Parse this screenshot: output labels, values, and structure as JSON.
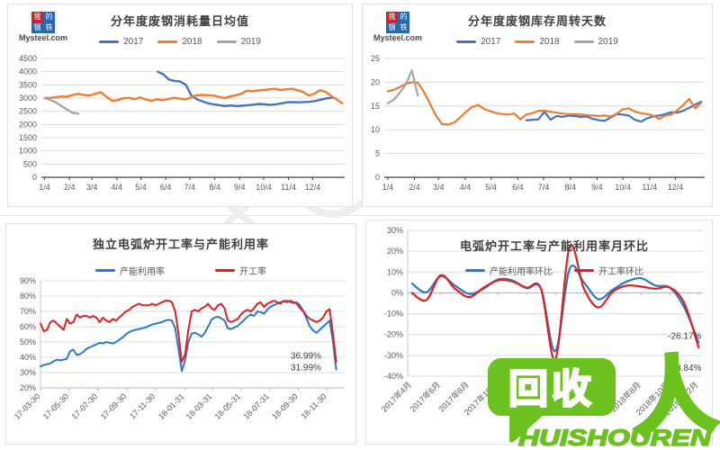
{
  "branding": {
    "name": "Mysteel.com",
    "chars": [
      "我",
      "的",
      "钢",
      "铁"
    ]
  },
  "recycle_logo": {
    "bubble_text": "回收",
    "person": "人",
    "latin": "HUISHOUREN",
    "color": "#6bc11e"
  },
  "chart_data": [
    {
      "type": "line",
      "title": "分年度废钢消耗量日均值",
      "ylim": [
        0,
        4500
      ],
      "ystep": 500,
      "yfmt": "int",
      "xlim": [
        0,
        378
      ],
      "size": [
        384,
        226
      ],
      "margins": {
        "l": 37,
        "t": 60,
        "r": 10,
        "b": 34
      },
      "axis_color": "#404040",
      "axis_width": 1.2,
      "xaxis_y": 0,
      "xtick_rotate": 0,
      "smooth": false,
      "yaxis": false,
      "legend_position": "top",
      "xticks": [
        {
          "x": 4,
          "label": "1/4"
        },
        {
          "x": 35,
          "label": "2/4"
        },
        {
          "x": 63,
          "label": "3/4"
        },
        {
          "x": 94,
          "label": "4/4"
        },
        {
          "x": 124,
          "label": "5/4"
        },
        {
          "x": 155,
          "label": "6/4"
        },
        {
          "x": 185,
          "label": "7/4"
        },
        {
          "x": 216,
          "label": "8/4"
        },
        {
          "x": 247,
          "label": "9/4"
        },
        {
          "x": 277,
          "label": "10/4"
        },
        {
          "x": 308,
          "label": "11/4"
        },
        {
          "x": 338,
          "label": "12/4"
        }
      ],
      "series": [
        {
          "name": "2017",
          "color": "#4472C4",
          "width": 2.4,
          "x_start": 145,
          "x_step": 7,
          "values": [
            4000,
            3900,
            3700,
            3650,
            3630,
            3500,
            3100,
            2950,
            2870,
            2800,
            2760,
            2730,
            2700,
            2720,
            2700,
            2710,
            2730,
            2750,
            2780,
            2760,
            2740,
            2760,
            2800,
            2840,
            2850,
            2840,
            2850,
            2860,
            2890,
            2940,
            2990,
            3010
          ]
        },
        {
          "name": "2018",
          "color": "#ED7D31",
          "width": 2.4,
          "x_start": 4,
          "x_step": 7,
          "values": [
            3000,
            3010,
            3030,
            3060,
            3050,
            3120,
            3160,
            3120,
            3100,
            3160,
            3220,
            3050,
            2900,
            2920,
            2990,
            3010,
            2960,
            3020,
            2950,
            2900,
            2950,
            2920,
            2960,
            3010,
            2980,
            2950,
            3010,
            3110,
            3120,
            3110,
            3100,
            3050,
            3000,
            3060,
            3110,
            3160,
            3280,
            3260,
            3290,
            3310,
            3330,
            3350,
            3310,
            3330,
            3350,
            3300,
            3240,
            3100,
            3160,
            3300,
            3240,
            3090,
            2950,
            2800
          ]
        },
        {
          "name": "2019",
          "color": "#A5A5A5",
          "width": 2.4,
          "x_start": 4,
          "x_step": 7,
          "values": [
            3000,
            2930,
            2840,
            2700,
            2560,
            2440,
            2410
          ]
        }
      ],
      "annotations": []
    },
    {
      "type": "line",
      "title": "分年度废钢库存周转天数",
      "ylim": [
        0,
        25
      ],
      "ystep": 5,
      "yfmt": "int",
      "xlim": [
        0,
        372
      ],
      "size": [
        390,
        226
      ],
      "margins": {
        "l": 24,
        "t": 60,
        "r": 10,
        "b": 34
      },
      "axis_color": "#404040",
      "axis_width": 1.2,
      "xaxis_y": 0,
      "xtick_rotate": 0,
      "smooth": false,
      "yaxis": false,
      "legend_position": "top",
      "xticks": [
        {
          "x": 4,
          "label": "1/4"
        },
        {
          "x": 35,
          "label": "2/4"
        },
        {
          "x": 63,
          "label": "3/4"
        },
        {
          "x": 94,
          "label": "4/4"
        },
        {
          "x": 124,
          "label": "5/4"
        },
        {
          "x": 155,
          "label": "6/4"
        },
        {
          "x": 185,
          "label": "7/4"
        },
        {
          "x": 216,
          "label": "8/4"
        },
        {
          "x": 247,
          "label": "9/4"
        },
        {
          "x": 277,
          "label": "10/4"
        },
        {
          "x": 308,
          "label": "11/4"
        },
        {
          "x": 338,
          "label": "12/4"
        }
      ],
      "series": [
        {
          "name": "2017",
          "color": "#4472C4",
          "width": 2.2,
          "x_start": 165,
          "x_step": 7,
          "values": [
            12.0,
            12.1,
            12.2,
            13.8,
            12.1,
            12.9,
            12.7,
            13.0,
            12.9,
            12.7,
            12.8,
            12.3,
            12.0,
            11.9,
            12.6,
            13.3,
            13.2,
            13.0,
            12.1,
            11.7,
            12.4,
            12.8,
            13.0,
            13.3,
            13.7,
            13.6,
            14.0,
            14.6,
            15.3,
            15.9
          ]
        },
        {
          "name": "2018",
          "color": "#ED7D31",
          "width": 2.2,
          "x_start": 4,
          "x_step": 7,
          "values": [
            18.1,
            18.4,
            19.0,
            19.7,
            20.0,
            19.9,
            18.0,
            15.5,
            13.0,
            11.2,
            11.1,
            11.5,
            12.6,
            13.8,
            14.8,
            15.2,
            14.4,
            13.9,
            13.5,
            13.3,
            13.2,
            13.4,
            12.2,
            13.2,
            13.5,
            14.0,
            14.0,
            13.8,
            13.6,
            13.4,
            13.3,
            13.3,
            13.2,
            13.1,
            13.0,
            12.9,
            13.0,
            12.8,
            13.4,
            14.3,
            14.5,
            13.8,
            13.5,
            13.3,
            13.0,
            12.3,
            13.0,
            13.2,
            14.1,
            15.2,
            16.5,
            14.5,
            15.7
          ]
        },
        {
          "name": "2019",
          "color": "#A5A5A5",
          "width": 2.2,
          "x_start": 4,
          "x_step": 7,
          "values": [
            15.6,
            16.3,
            17.8,
            19.5,
            22.5,
            17.2
          ]
        }
      ],
      "annotations": []
    },
    {
      "type": "line",
      "title": "独立电弧炉开工率与产能利用率",
      "ylim": [
        20,
        90
      ],
      "ystep": 10,
      "yfmt": "pct",
      "xlim": [
        0,
        648
      ],
      "size": [
        390,
        246
      ],
      "margins": {
        "l": 38,
        "t": 63,
        "r": 14,
        "b": 64
      },
      "axis_color": "#b8b8b8",
      "axis_width": 1,
      "xaxis_y": 20,
      "xtick_rotate": -45,
      "smooth": false,
      "yaxis": true,
      "legend_position": "top",
      "xticks": [
        {
          "x": 0,
          "label": "17-03-30"
        },
        {
          "x": 61,
          "label": "17-05-30"
        },
        {
          "x": 122,
          "label": "17-07-30"
        },
        {
          "x": 184,
          "label": "17-09-30"
        },
        {
          "x": 245,
          "label": "17-11-30"
        },
        {
          "x": 307,
          "label": "18-01-31"
        },
        {
          "x": 366,
          "label": "18-03-31"
        },
        {
          "x": 427,
          "label": "18-05-31"
        },
        {
          "x": 488,
          "label": "18-07-31"
        },
        {
          "x": 549,
          "label": "18-09-30"
        },
        {
          "x": 610,
          "label": "18-11-30"
        }
      ],
      "series": [
        {
          "name": "产能利用率",
          "color": "#2E79C7",
          "width": 2,
          "x_start": 0,
          "x_step": 7,
          "values": [
            34,
            35,
            35.5,
            36,
            37.5,
            38.5,
            38,
            38.5,
            39,
            44,
            45,
            41.5,
            42,
            43.5,
            45.5,
            46.5,
            47.5,
            48.5,
            49.5,
            49,
            50,
            49.5,
            49,
            50,
            51.5,
            53,
            55,
            56.5,
            57.5,
            58,
            58.5,
            59,
            59.5,
            60.5,
            61.5,
            62,
            62.5,
            63,
            64,
            64.5,
            64,
            59,
            45,
            31,
            38,
            50,
            55.5,
            56,
            55,
            53.5,
            56,
            60,
            64.5,
            66,
            66.5,
            65.5,
            64,
            59,
            58.5,
            59.5,
            60.5,
            62.5,
            64.5,
            66.5,
            68,
            67,
            70,
            69.5,
            68.5,
            71,
            73,
            74,
            75,
            76,
            76.5,
            77,
            76,
            75.5,
            76,
            74,
            70,
            65,
            60,
            57.5,
            56,
            58,
            60,
            62,
            64,
            50,
            31.99
          ]
        },
        {
          "name": "开工率",
          "color": "#DF2020",
          "width": 2,
          "x_start": 0,
          "x_step": 7,
          "values": [
            62,
            57,
            58,
            63,
            64,
            62,
            60,
            58,
            65,
            62,
            63,
            68,
            66,
            67,
            67,
            66,
            67,
            66,
            63,
            66,
            64,
            63,
            65,
            64,
            66,
            68,
            70,
            71,
            73,
            74,
            75,
            74,
            74,
            74,
            75,
            74,
            75,
            76,
            77,
            77,
            76,
            70,
            55,
            37,
            42,
            58,
            70,
            71,
            70,
            72,
            73,
            75,
            72,
            71,
            74,
            75,
            72,
            64,
            63,
            64,
            65,
            68,
            70,
            71,
            70,
            72,
            75,
            76,
            73,
            75,
            76,
            77,
            76,
            75,
            77,
            76,
            77,
            76,
            75,
            72,
            70,
            67,
            65,
            64,
            63,
            64,
            66,
            70,
            71.5,
            55,
            36.99
          ]
        }
      ],
      "annotations": [
        {
          "x": 598,
          "y": 39,
          "text": "36.99%"
        },
        {
          "x": 598,
          "y": 31.5,
          "text": "31.99%"
        }
      ]
    },
    {
      "type": "line",
      "title": "电弧炉开工率与产能利用率月环比",
      "ylim": [
        -40,
        30
      ],
      "ystep": 10,
      "yfmt": "pct",
      "xlim": [
        -0.3,
        20.3
      ],
      "size": [
        386,
        250
      ],
      "margins": {
        "l": 46,
        "t": 11,
        "r": 12,
        "b": 77
      },
      "axis_color": "#b8b8b8",
      "axis_width": 1,
      "xaxis_y": 0,
      "xtick_rotate": -45,
      "smooth": true,
      "yaxis": true,
      "legend_position": "inside-top",
      "xticks": [
        {
          "x": 0,
          "label": "2017年4月"
        },
        {
          "x": 2,
          "label": "2017年6月"
        },
        {
          "x": 4,
          "label": "2017年8月"
        },
        {
          "x": 6,
          "label": "2017年10月"
        },
        {
          "x": 8,
          "label": "2017年12月"
        },
        {
          "x": 10,
          "label": "2018年2月"
        },
        {
          "x": 12,
          "label": "2018年4月"
        },
        {
          "x": 14,
          "label": "2018年6月"
        },
        {
          "x": 16,
          "label": "2018年8月"
        },
        {
          "x": 18,
          "label": "2018年10月"
        },
        {
          "x": 20,
          "label": "2018年12月"
        }
      ],
      "series": [
        {
          "name": "产能利用率环比",
          "color": "#2E79C7",
          "width": 2.2,
          "x_start": 0,
          "x_step": 1,
          "values": [
            4.5,
            0.3,
            8.0,
            3.5,
            -0.5,
            2.0,
            6.5,
            6.0,
            2.2,
            2.0,
            -28.0,
            11.5,
            5.0,
            -3.0,
            1.5,
            5.5,
            7.0,
            3.5,
            2.5,
            -7.0,
            -23.84
          ]
        },
        {
          "name": "开工率环比",
          "color": "#DF2020",
          "width": 2.2,
          "x_start": 0,
          "x_step": 1,
          "values": [
            0.0,
            -3.5,
            8.5,
            2.0,
            -2.0,
            2.5,
            6.0,
            5.5,
            2.5,
            2.0,
            -32.0,
            22.0,
            2.0,
            -7.0,
            0.5,
            3.5,
            3.0,
            2.0,
            2.5,
            -5.0,
            -26.17
          ]
        }
      ],
      "annotations": [
        {
          "x": 20.2,
          "y": -22,
          "text": "-26.17%"
        },
        {
          "x": 20.2,
          "y": -37.5,
          "text": "-23.84%"
        }
      ]
    }
  ]
}
